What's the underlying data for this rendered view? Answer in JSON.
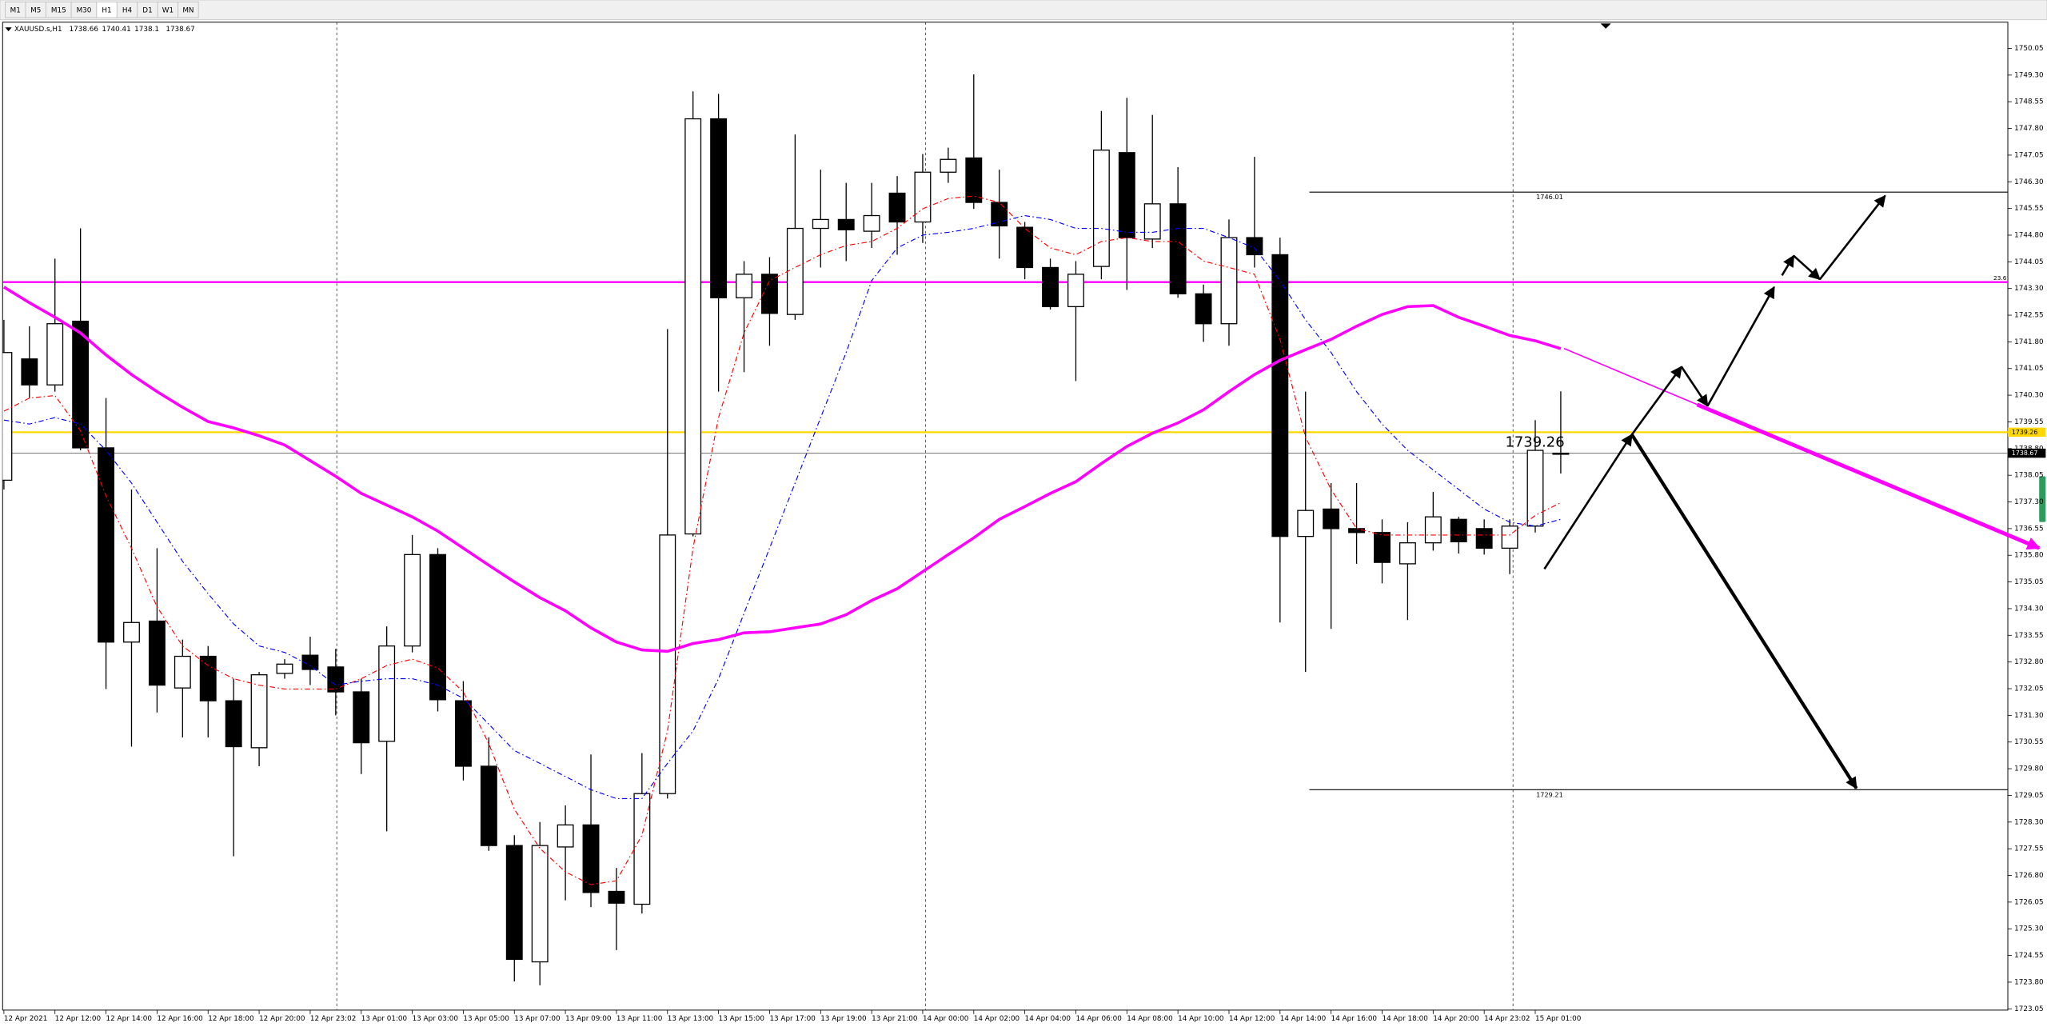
{
  "toolbar": {
    "timeframes": [
      "M1",
      "M5",
      "M15",
      "M30",
      "H1",
      "H4",
      "D1",
      "W1",
      "MN"
    ],
    "active": "H1"
  },
  "chart_data": {
    "type": "candlestick",
    "symbol": "XAUUSD.s,H1",
    "up_color": "#ffffff",
    "down_color": "#000000",
    "categories": [
      "12 Apr 2021",
      null,
      "12 Apr 12:00",
      null,
      "12 Apr 14:00",
      null,
      "12 Apr 16:00",
      null,
      "12 Apr 18:00",
      null,
      "12 Apr 20:00",
      null,
      "12 Apr 23:02",
      null,
      "13 Apr 01:00",
      null,
      "13 Apr 03:00",
      null,
      "13 Apr 05:00",
      null,
      "13 Apr 07:00",
      null,
      "13 Apr 09:00",
      null,
      "13 Apr 11:00",
      null,
      "13 Apr 13:00",
      null,
      "13 Apr 15:00",
      null,
      "13 Apr 17:00",
      null,
      "13 Apr 19:00",
      null,
      "13 Apr 21:00",
      null,
      "14 Apr 00:00",
      null,
      "14 Apr 02:00",
      null,
      "14 Apr 04:00",
      null,
      "14 Apr 06:00",
      null,
      "14 Apr 08:00",
      null,
      "14 Apr 10:00",
      null,
      "14 Apr 12:00",
      null,
      "14 Apr 14:00",
      null,
      "14 Apr 16:00",
      null,
      "14 Apr 18:00",
      null,
      "14 Apr 20:00",
      null,
      "14 Apr 23:02",
      null,
      "15 Apr 01:00",
      null
    ],
    "open": [
      1737.91,
      1741.32,
      1740.59,
      1742.38,
      1738.82,
      1733.36,
      1733.95,
      1732.07,
      1732.96,
      1731.71,
      1730.39,
      1732.48,
      1732.99,
      1732.66,
      1731.96,
      1730.57,
      1733.25,
      1735.82,
      1731.71,
      1729.87,
      1727.64,
      1724.37,
      1727.6,
      1728.22,
      1726.35,
      1725.99,
      1729.1,
      1736.4,
      1748.07,
      1743.04,
      1743.7,
      1742.57,
      1744.99,
      1745.24,
      1744.91,
      1745.98,
      1745.17,
      1746.57,
      1746.97,
      1745.72,
      1745.02,
      1743.89,
      1742.79,
      1743.92,
      1747.12,
      1744.69,
      1745.68,
      1743.15,
      1742.31,
      1744.73,
      1744.25,
      1736.33,
      1737.1,
      1736.55,
      1736.44,
      1735.56,
      1736.15,
      1736.81,
      1736.55,
      1736.0,
      1736.62,
      1738.66
    ],
    "high": [
      1742.42,
      1742.24,
      1744.14,
      1744.99,
      1740.22,
      1737.65,
      1736.0,
      1733.43,
      1733.25,
      1732.33,
      1732.52,
      1732.88,
      1733.51,
      1733.17,
      1732.33,
      1733.8,
      1736.37,
      1736.0,
      1732.26,
      1730.68,
      1727.93,
      1728.3,
      1728.77,
      1730.2,
      1727.01,
      1730.24,
      1742.16,
      1748.84,
      1748.77,
      1744.07,
      1744.18,
      1747.63,
      1746.64,
      1746.27,
      1746.27,
      1746.46,
      1747.08,
      1747.26,
      1749.32,
      1746.64,
      1745.17,
      1744.14,
      1744.07,
      1748.29,
      1748.66,
      1748.18,
      1746.71,
      1743.41,
      1745.24,
      1747.0,
      1744.73,
      1740.4,
      1737.83,
      1737.83,
      1736.81,
      1736.73,
      1737.58,
      1736.88,
      1736.81,
      1736.81,
      1739.6,
      1740.41
    ],
    "low": [
      1737.65,
      1740.22,
      1740.4,
      1738.75,
      1732.04,
      1730.42,
      1731.38,
      1730.68,
      1730.68,
      1727.34,
      1729.87,
      1732.33,
      1732.15,
      1731.3,
      1729.65,
      1728.04,
      1733.07,
      1731.41,
      1729.47,
      1727.49,
      1723.82,
      1723.71,
      1726.1,
      1725.91,
      1724.7,
      1725.73,
      1728.96,
      1736.33,
      1740.4,
      1740.95,
      1741.69,
      1742.42,
      1743.89,
      1744.07,
      1744.44,
      1744.25,
      1744.58,
      1746.27,
      1745.54,
      1744.14,
      1743.56,
      1742.71,
      1740.7,
      1743.56,
      1743.26,
      1744.44,
      1743.04,
      1741.8,
      1741.69,
      1743.89,
      1733.91,
      1732.52,
      1733.73,
      1735.56,
      1735.01,
      1733.98,
      1735.93,
      1735.85,
      1735.82,
      1735.27,
      1736.44,
      1738.1
    ],
    "close": [
      1741.5,
      1740.59,
      1742.31,
      1738.82,
      1733.36,
      1733.91,
      1732.15,
      1732.96,
      1731.71,
      1730.42,
      1732.44,
      1732.74,
      1732.59,
      1731.96,
      1730.53,
      1733.25,
      1735.82,
      1731.74,
      1729.87,
      1727.64,
      1724.44,
      1727.64,
      1728.22,
      1726.32,
      1726.02,
      1729.1,
      1736.37,
      1748.07,
      1743.04,
      1743.7,
      1742.6,
      1744.99,
      1745.24,
      1744.95,
      1745.35,
      1745.17,
      1746.57,
      1746.93,
      1745.72,
      1745.06,
      1743.89,
      1742.79,
      1743.7,
      1747.19,
      1744.73,
      1745.68,
      1743.15,
      1742.31,
      1744.73,
      1744.25,
      1736.33,
      1737.06,
      1736.55,
      1736.44,
      1735.6,
      1736.15,
      1736.88,
      1736.18,
      1736.0,
      1736.62,
      1738.75,
      1738.67
    ],
    "overlays": [
      {
        "color": "#ff00ff",
        "dash": false,
        "values": [
          1743.34,
          1742.9,
          1742.49,
          1742.05,
          1741.43,
          1740.88,
          1740.4,
          1739.96,
          1739.56,
          1739.38,
          1739.16,
          1738.9,
          1738.46,
          1738.02,
          1737.54,
          1737.21,
          1736.88,
          1736.48,
          1736.0,
          1735.52,
          1735.05,
          1734.61,
          1734.24,
          1733.76,
          1733.36,
          1733.14,
          1733.1,
          1733.32,
          1733.43,
          1733.62,
          1733.65,
          1733.76,
          1733.87,
          1734.13,
          1734.53,
          1734.86,
          1735.34,
          1735.82,
          1736.29,
          1736.81,
          1737.17,
          1737.54,
          1737.87,
          1738.38,
          1738.86,
          1739.23,
          1739.52,
          1739.89,
          1740.4,
          1740.88,
          1741.28,
          1741.58,
          1741.87,
          1742.24,
          1742.57,
          1742.79,
          1742.82,
          1742.49,
          1742.24,
          1741.98,
          1741.83,
          1741.61
        ]
      },
      {
        "color": "#ff0000",
        "dash": true,
        "values": [
          1739.85,
          1740.22,
          1740.29,
          1739.3,
          1737.47,
          1736.0,
          1734.35,
          1733.25,
          1732.7,
          1732.33,
          1732.15,
          1732.04,
          1732.04,
          1732.04,
          1732.33,
          1732.7,
          1732.88,
          1732.63,
          1731.96,
          1730.5,
          1728.66,
          1727.56,
          1726.9,
          1726.54,
          1726.65,
          1727.93,
          1730.86,
          1736.0,
          1739.67,
          1742.05,
          1743.52,
          1743.89,
          1744.25,
          1744.51,
          1744.62,
          1744.99,
          1745.54,
          1745.83,
          1745.9,
          1745.72,
          1744.99,
          1744.44,
          1744.25,
          1744.62,
          1744.73,
          1744.62,
          1744.62,
          1744.07,
          1743.89,
          1743.7,
          1741.87,
          1739.12,
          1737.65,
          1736.55,
          1736.37,
          1736.37,
          1736.37,
          1736.37,
          1736.37,
          1736.37,
          1736.92,
          1737.28
        ]
      },
      {
        "color": "#0000ff",
        "dash": true,
        "values": [
          1739.6,
          1739.49,
          1739.67,
          1739.49,
          1738.75,
          1737.83,
          1736.73,
          1735.63,
          1734.72,
          1733.87,
          1733.25,
          1733.07,
          1732.7,
          1732.15,
          1732.26,
          1732.33,
          1732.33,
          1732.15,
          1731.78,
          1731.05,
          1730.31,
          1729.95,
          1729.58,
          1729.21,
          1728.96,
          1728.96,
          1729.95,
          1730.86,
          1732.33,
          1734.17,
          1736.0,
          1737.83,
          1739.67,
          1741.5,
          1743.52,
          1744.44,
          1744.8,
          1744.88,
          1744.99,
          1745.17,
          1745.35,
          1745.24,
          1744.99,
          1744.99,
          1744.88,
          1744.88,
          1744.99,
          1744.99,
          1744.73,
          1744.44,
          1743.52,
          1742.42,
          1741.5,
          1740.4,
          1739.49,
          1738.75,
          1738.2,
          1737.65,
          1737.1,
          1736.73,
          1736.62,
          1736.81
        ]
      }
    ],
    "hlines": [
      {
        "value": 1743.48,
        "color": "#ff00ff",
        "label": "23.6"
      },
      {
        "value": 1739.26,
        "color": "#ffd700"
      }
    ],
    "price_levels": [
      {
        "value": 1746.01
      },
      {
        "value": 1729.21
      }
    ],
    "ylim": [
      1723.05,
      1750.75
    ],
    "yticks": [
      1750.05,
      {
        "value": 1749.3,
        "label": "1749.30"
      },
      1748.55,
      {
        "value": 1747.8,
        "label": "1747.80"
      },
      1747.05,
      {
        "value": 1746.3,
        "label": "1746.30"
      },
      1745.55,
      {
        "value": 1744.8,
        "label": "1744.80"
      },
      1744.05,
      {
        "value": 1743.3,
        "label": "1743.30"
      },
      1742.55,
      {
        "value": 1741.8,
        "label": "1741.80"
      },
      1741.05,
      {
        "value": 1740.3,
        "label": "1740.30"
      },
      1739.55,
      {
        "value": 1738.8,
        "label": "1738.80"
      },
      1738.05,
      {
        "value": 1737.3,
        "label": "1737.30"
      },
      1736.55,
      {
        "value": 1735.8,
        "label": "1735.80"
      },
      1735.05,
      {
        "value": 1734.3,
        "label": "1734.30"
      },
      1733.55,
      {
        "value": 1732.8,
        "label": "1732.80"
      },
      1732.05,
      {
        "value": 1731.3,
        "label": "1731.30"
      },
      1730.55,
      {
        "value": 1729.8,
        "label": "1729.80"
      },
      1729.05,
      {
        "value": 1728.3,
        "label": "1728.30"
      },
      1727.55,
      {
        "value": 1726.8,
        "label": "1726.80"
      },
      1726.05,
      {
        "value": 1725.3,
        "label": "1725.30"
      },
      1724.55,
      {
        "value": 1723.8,
        "label": "1723.80"
      },
      1723.05
    ]
  }
}
